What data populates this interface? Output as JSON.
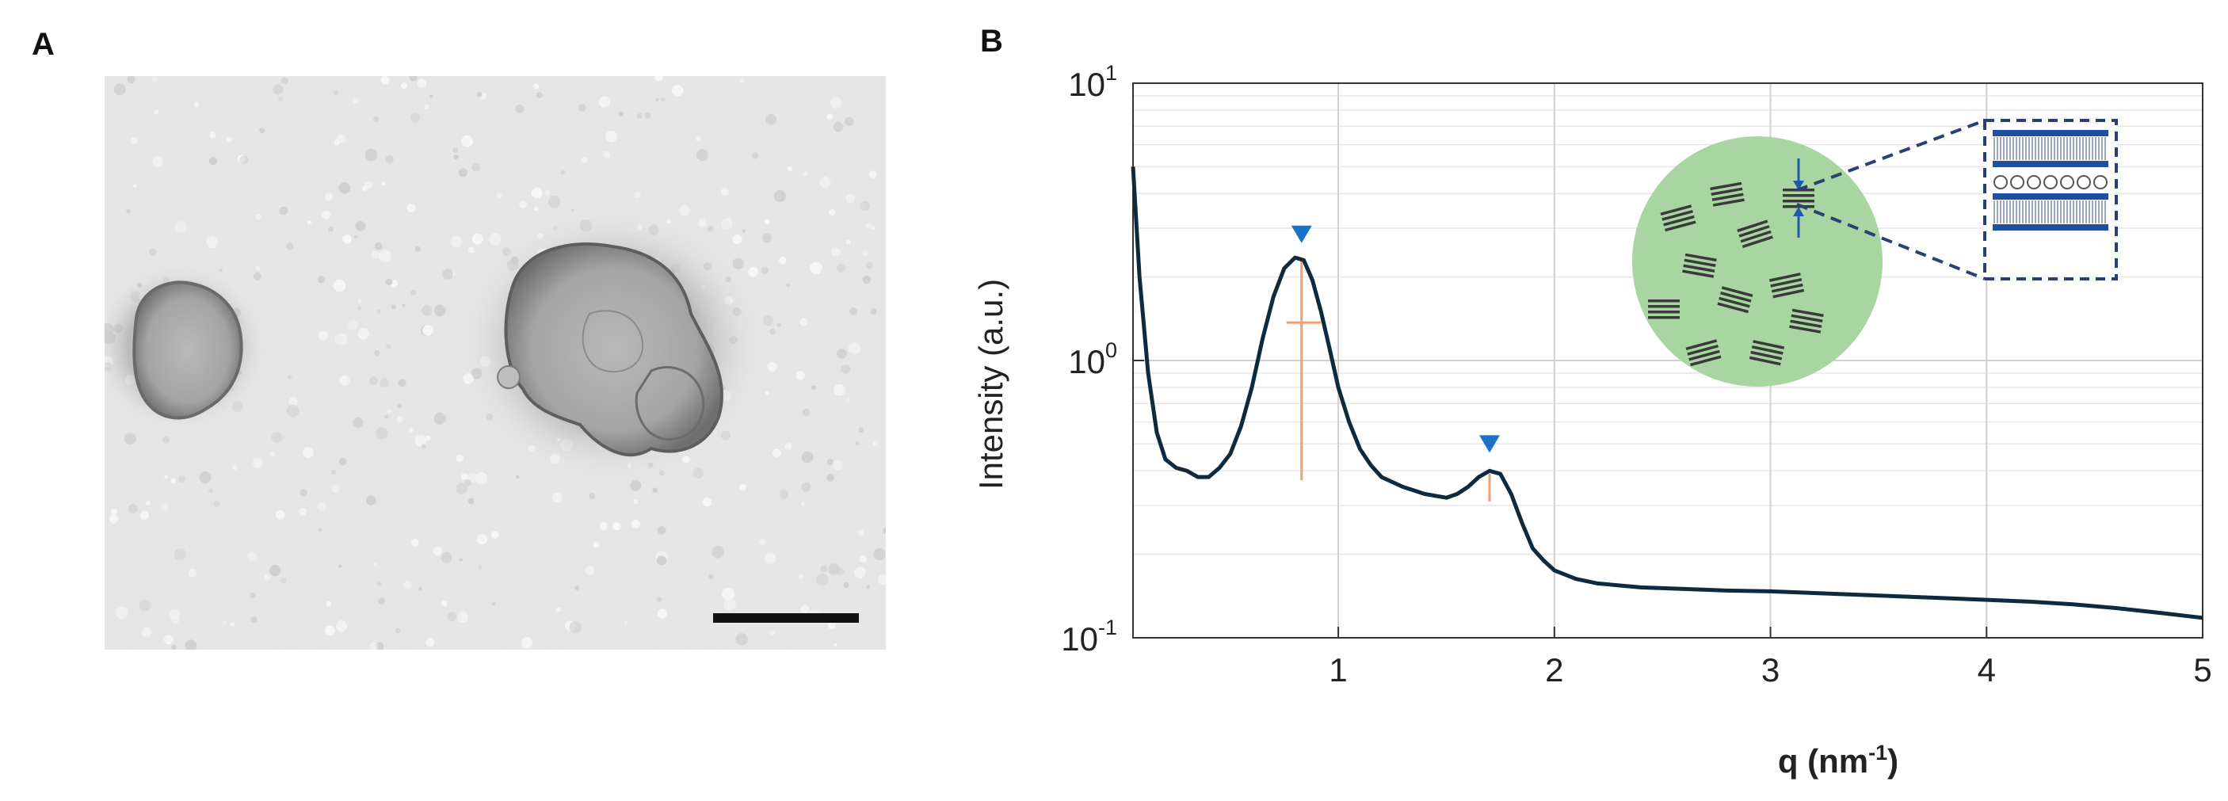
{
  "panels": {
    "a_label": "A",
    "b_label": "B"
  },
  "micrograph": {
    "scale_bar": true,
    "colors": {
      "background": "#e2e2e2",
      "vesicle": "#9a9a9a",
      "scale_bar": "#111111"
    }
  },
  "chart_data": {
    "type": "line",
    "title": "",
    "xlabel": "q (nm",
    "xlabel_exponent": "-1",
    "xlabel_suffix": ")",
    "ylabel": "Intensity (a.u.)",
    "xlim": [
      0.05,
      5
    ],
    "ylim": [
      0.1,
      10
    ],
    "yscale": "log",
    "grid": true,
    "x_ticks": [
      {
        "value": 1,
        "label": "1"
      },
      {
        "value": 2,
        "label": "2"
      },
      {
        "value": 3,
        "label": "3"
      },
      {
        "value": 4,
        "label": "4"
      },
      {
        "value": 5,
        "label": "5"
      }
    ],
    "y_ticks": [
      {
        "value": 10,
        "base": "10",
        "exponent": "1"
      },
      {
        "value": 1,
        "base": "10",
        "exponent": "0"
      },
      {
        "value": 0.1,
        "base": "10",
        "exponent": "-1"
      }
    ],
    "series": [
      {
        "color": "#0d2a3e",
        "x": [
          0.05,
          0.08,
          0.12,
          0.16,
          0.2,
          0.25,
          0.3,
          0.35,
          0.4,
          0.45,
          0.5,
          0.55,
          0.6,
          0.65,
          0.7,
          0.75,
          0.8,
          0.84,
          0.88,
          0.92,
          0.96,
          1.0,
          1.05,
          1.1,
          1.15,
          1.2,
          1.3,
          1.4,
          1.5,
          1.55,
          1.6,
          1.65,
          1.7,
          1.75,
          1.8,
          1.85,
          1.9,
          1.95,
          2.0,
          2.1,
          2.2,
          2.4,
          2.6,
          2.8,
          3.0,
          3.2,
          3.4,
          3.6,
          3.8,
          4.0,
          4.2,
          4.4,
          4.6,
          4.8,
          5.0
        ],
        "y": [
          5.0,
          2.0,
          0.9,
          0.55,
          0.44,
          0.41,
          0.4,
          0.38,
          0.38,
          0.41,
          0.46,
          0.58,
          0.8,
          1.2,
          1.7,
          2.15,
          2.35,
          2.3,
          1.95,
          1.5,
          1.1,
          0.8,
          0.6,
          0.48,
          0.42,
          0.38,
          0.35,
          0.33,
          0.32,
          0.33,
          0.35,
          0.38,
          0.4,
          0.39,
          0.33,
          0.26,
          0.21,
          0.19,
          0.175,
          0.163,
          0.157,
          0.152,
          0.15,
          0.148,
          0.147,
          0.145,
          0.143,
          0.141,
          0.139,
          0.137,
          0.135,
          0.132,
          0.128,
          0.123,
          0.118
        ]
      }
    ],
    "peaks": [
      {
        "x": 0.83,
        "marker_y": 2.85,
        "color": "#1a73c9"
      },
      {
        "x": 1.7,
        "marker_y": 0.5,
        "color": "#1a73c9"
      }
    ],
    "fwhm_markers": [
      {
        "x": 0.83,
        "y_low": 0.37,
        "y_high": 2.3,
        "half_y": 1.37,
        "x_left": 0.76,
        "x_right": 0.92,
        "color": "#f0a070"
      },
      {
        "x": 1.7,
        "y_low": 0.31,
        "y_high": 0.39,
        "color": "#f0a070"
      }
    ],
    "inset": {
      "circle_color": "#a8d5a2",
      "rod_color": "#3a3a3a",
      "arrow_color": "#1f5aa8",
      "box_dash_color": "#2b3f73",
      "bilayer_color": "#1f4fa0"
    }
  }
}
